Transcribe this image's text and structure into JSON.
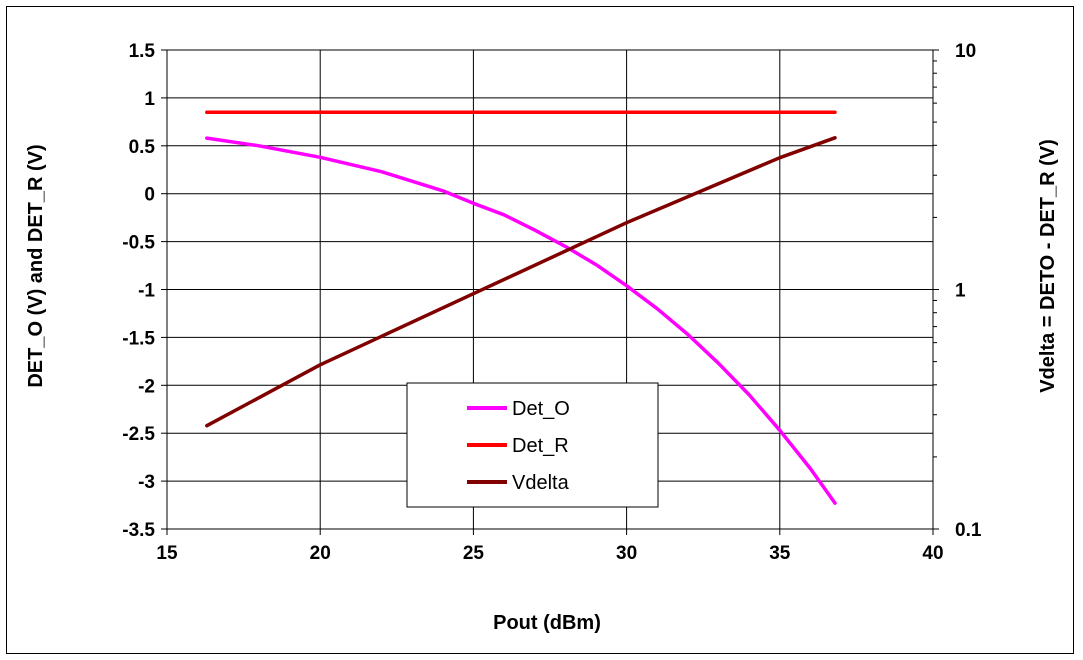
{
  "chart_data": {
    "type": "line",
    "xlabel": "Pout (dBm)",
    "ylabel_left": "DET_O (V) and DET_R (V)",
    "ylabel_right": "Vdelta = DETO - DET_R (V)",
    "xlim": [
      15,
      40
    ],
    "ylim_left": [
      -3.5,
      1.5
    ],
    "ylim_right": [
      0.1,
      10
    ],
    "y_right_scale": "log",
    "x_ticks": [
      "15",
      "20",
      "25",
      "30",
      "35",
      "40"
    ],
    "y_left_ticks": [
      "1.5",
      "1",
      "0.5",
      "0",
      "-0.5",
      "-1",
      "-1.5",
      "-2",
      "-2.5",
      "-3",
      "-3.5"
    ],
    "y_right_ticks": [
      "10",
      "1",
      "0.1"
    ],
    "grid": true,
    "legend_position": "bottom-center",
    "series": [
      {
        "name": "Det_O",
        "axis": "left",
        "color": "#ff00ff",
        "x": [
          16.3,
          18,
          20,
          22,
          24,
          25,
          26,
          27,
          28,
          29,
          30,
          31,
          32,
          33,
          34,
          35,
          36,
          36.8
        ],
        "y": [
          0.58,
          0.5,
          0.38,
          0.23,
          0.03,
          -0.1,
          -0.22,
          -0.38,
          -0.55,
          -0.74,
          -0.96,
          -1.2,
          -1.47,
          -1.77,
          -2.1,
          -2.47,
          -2.87,
          -3.23
        ]
      },
      {
        "name": "Det_R",
        "axis": "left",
        "color": "#ff0000",
        "x": [
          16.3,
          36.8
        ],
        "y": [
          0.85,
          0.85
        ]
      },
      {
        "name": "Vdelta",
        "axis": "right",
        "color": "#800000",
        "x": [
          16.3,
          20,
          25,
          30,
          35,
          36.8
        ],
        "y": [
          0.27,
          0.485,
          0.96,
          1.9,
          3.55,
          4.3
        ]
      }
    ]
  }
}
